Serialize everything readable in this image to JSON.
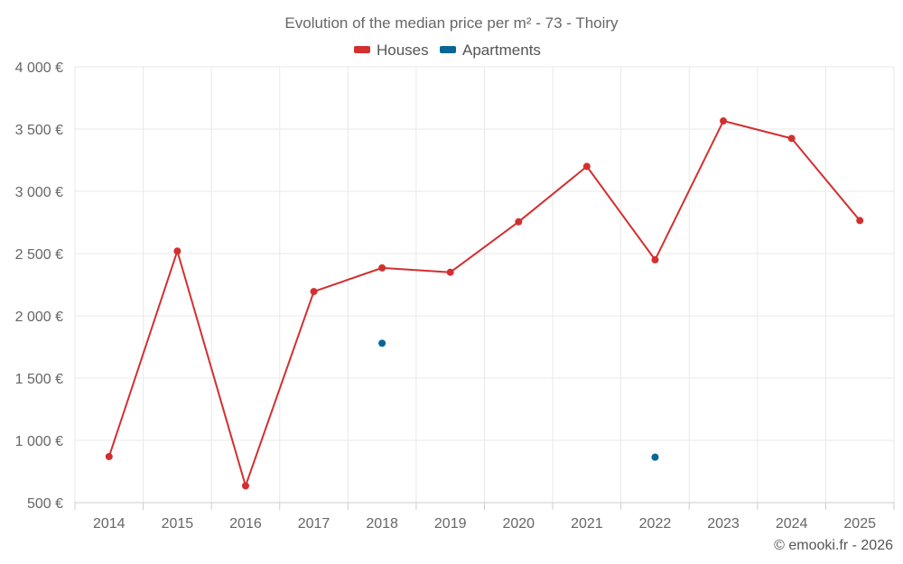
{
  "chart_data": {
    "type": "line",
    "title": "Evolution of the median price per m² - 73 - Thoiry",
    "categories": [
      "2014",
      "2015",
      "2016",
      "2017",
      "2018",
      "2019",
      "2020",
      "2021",
      "2022",
      "2023",
      "2024",
      "2025"
    ],
    "series": [
      {
        "name": "Houses",
        "color": "#d32f2f",
        "style": "line+markers",
        "values": [
          870,
          2520,
          635,
          2195,
          2385,
          2350,
          2755,
          3200,
          2450,
          3565,
          3425,
          2765
        ]
      },
      {
        "name": "Apartments",
        "color": "#0a6696",
        "style": "markers",
        "values": [
          null,
          null,
          null,
          null,
          1780,
          null,
          null,
          null,
          865,
          null,
          null,
          null
        ]
      }
    ],
    "ylim": [
      500,
      4000
    ],
    "yticks": [
      500,
      1000,
      1500,
      2000,
      2500,
      3000,
      3500,
      4000
    ],
    "ytick_labels": [
      "500 €",
      "1 000 €",
      "1 500 €",
      "2 000 €",
      "2 500 €",
      "3 000 €",
      "3 500 €",
      "4 000 €"
    ],
    "xlabel": "",
    "ylabel": "",
    "grid": true,
    "legend": "top-center"
  },
  "credit": "© emooki.fr - 2026"
}
